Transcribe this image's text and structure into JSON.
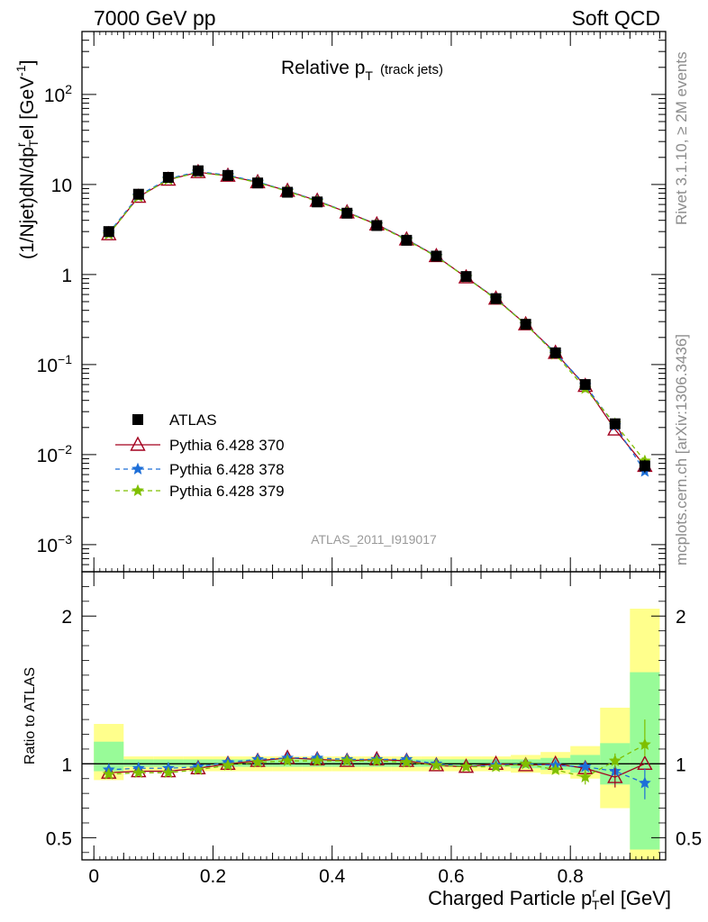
{
  "header": {
    "left": "7000 GeV pp",
    "right": "Soft QCD"
  },
  "side_labels": {
    "rivet": "Rivet 3.1.10, ≥ 2M events",
    "source": "mcplots.cern.ch [arXiv:1306.3436]"
  },
  "chart_data": [
    {
      "type": "line",
      "title": "Relative p",
      "title_sub": "T",
      "title_note": "(track jets)",
      "ylabel": "(1/Njet)dN/dp",
      "ylabel_sup": "r",
      "ylabel_sub": "T",
      "ylabel_tail": "el [GeV",
      "ylabel_unit_sup": "-1",
      "ylabel_close": "]",
      "yscale": "log",
      "ylim": [
        0.0005,
        500
      ],
      "xlim": [
        -0.02,
        0.96
      ],
      "y_ticks": [
        {
          "v": 0.001,
          "base": "10",
          "exp": "−3"
        },
        {
          "v": 0.01,
          "base": "10",
          "exp": "−2"
        },
        {
          "v": 0.1,
          "base": "10",
          "exp": "−1"
        },
        {
          "v": 1,
          "base": "1",
          "exp": ""
        },
        {
          "v": 10,
          "base": "10",
          "exp": ""
        },
        {
          "v": 100,
          "base": "10",
          "exp": "2"
        }
      ],
      "watermark": "ATLAS_2011_I919017",
      "x": [
        0.025,
        0.075,
        0.125,
        0.175,
        0.225,
        0.275,
        0.325,
        0.375,
        0.425,
        0.475,
        0.525,
        0.575,
        0.625,
        0.675,
        0.725,
        0.775,
        0.825,
        0.875,
        0.925
      ],
      "series": [
        {
          "name": "ATLAS",
          "color": "#000000",
          "marker": "square",
          "values": [
            3.0,
            7.8,
            12.0,
            14.2,
            12.6,
            10.4,
            8.2,
            6.4,
            4.8,
            3.5,
            2.4,
            1.6,
            0.95,
            0.54,
            0.28,
            0.135,
            0.06,
            0.022,
            0.0075
          ]
        },
        {
          "name": "Pythia 6.428 370",
          "color": "#a3001f",
          "marker": "triangle-open",
          "dash": "solid",
          "values": [
            2.8,
            7.3,
            11.3,
            13.7,
            12.5,
            10.6,
            8.5,
            6.6,
            4.9,
            3.6,
            2.45,
            1.6,
            0.93,
            0.54,
            0.28,
            0.135,
            0.058,
            0.019,
            0.0075
          ]
        },
        {
          "name": "Pythia 6.428 378",
          "color": "#1e6fd8",
          "marker": "star",
          "dash": "dashed",
          "values": [
            2.9,
            7.5,
            11.6,
            13.9,
            12.7,
            10.7,
            8.5,
            6.6,
            4.95,
            3.6,
            2.45,
            1.6,
            0.93,
            0.54,
            0.28,
            0.135,
            0.059,
            0.021,
            0.0065
          ]
        },
        {
          "name": "Pythia 6.428 379",
          "color": "#7fbf00",
          "marker": "star",
          "dash": "dashed",
          "values": [
            2.8,
            7.3,
            11.3,
            13.6,
            12.4,
            10.5,
            8.4,
            6.5,
            4.9,
            3.55,
            2.42,
            1.58,
            0.93,
            0.53,
            0.28,
            0.13,
            0.054,
            0.022,
            0.0085
          ]
        }
      ]
    },
    {
      "type": "line",
      "ylabel": "Ratio to ATLAS",
      "xlabel": "Charged Particle p",
      "xlabel_sup": "r",
      "xlabel_sub": "T",
      "xlabel_tail": "el [GeV]",
      "ylim": [
        0.35,
        2.3
      ],
      "xlim": [
        -0.02,
        0.96
      ],
      "y_ticks": [
        0.5,
        1,
        2
      ],
      "y_tick_labels": [
        "0.5",
        "1",
        "2"
      ],
      "x_ticks": [
        0,
        0.2,
        0.4,
        0.6,
        0.8
      ],
      "x_tick_labels": [
        "0",
        "0.2",
        "0.4",
        "0.6",
        "0.8"
      ],
      "x": [
        0.025,
        0.075,
        0.125,
        0.175,
        0.225,
        0.275,
        0.325,
        0.375,
        0.425,
        0.475,
        0.525,
        0.575,
        0.625,
        0.675,
        0.725,
        0.775,
        0.825,
        0.875,
        0.925
      ],
      "bands": {
        "edges": [
          0,
          0.05,
          0.1,
          0.15,
          0.2,
          0.25,
          0.3,
          0.35,
          0.4,
          0.45,
          0.5,
          0.55,
          0.6,
          0.65,
          0.7,
          0.75,
          0.8,
          0.85,
          0.9,
          0.95
        ],
        "yellow": [
          [
            0.89,
            1.27
          ],
          [
            0.95,
            1.05
          ],
          [
            0.95,
            1.05
          ],
          [
            0.95,
            1.05
          ],
          [
            0.95,
            1.05
          ],
          [
            0.95,
            1.05
          ],
          [
            0.95,
            1.05
          ],
          [
            0.95,
            1.05
          ],
          [
            0.95,
            1.05
          ],
          [
            0.95,
            1.05
          ],
          [
            0.95,
            1.05
          ],
          [
            0.95,
            1.05
          ],
          [
            0.95,
            1.05
          ],
          [
            0.95,
            1.05
          ],
          [
            0.94,
            1.06
          ],
          [
            0.93,
            1.08
          ],
          [
            0.9,
            1.12
          ],
          [
            0.7,
            1.38
          ],
          [
            0.35,
            2.05
          ]
        ],
        "green": [
          [
            0.95,
            1.15
          ],
          [
            0.98,
            1.03
          ],
          [
            0.98,
            1.03
          ],
          [
            0.98,
            1.03
          ],
          [
            0.98,
            1.03
          ],
          [
            0.98,
            1.03
          ],
          [
            0.98,
            1.03
          ],
          [
            0.98,
            1.03
          ],
          [
            0.98,
            1.03
          ],
          [
            0.98,
            1.03
          ],
          [
            0.98,
            1.03
          ],
          [
            0.98,
            1.03
          ],
          [
            0.98,
            1.03
          ],
          [
            0.98,
            1.03
          ],
          [
            0.97,
            1.03
          ],
          [
            0.96,
            1.04
          ],
          [
            0.94,
            1.06
          ],
          [
            0.86,
            1.14
          ],
          [
            0.42,
            1.62
          ]
        ]
      },
      "series": [
        {
          "name": "Pythia 6.428 370",
          "color": "#a3001f",
          "marker": "triangle-open",
          "dash": "solid",
          "values": [
            0.94,
            0.95,
            0.95,
            0.97,
            1.0,
            1.02,
            1.04,
            1.03,
            1.02,
            1.03,
            1.02,
            0.99,
            0.98,
            1.0,
            0.99,
            1.0,
            0.97,
            0.91,
            1.0
          ]
        },
        {
          "name": "Pythia 6.428 378",
          "color": "#1e6fd8",
          "marker": "star",
          "dash": "dashed",
          "values": [
            0.96,
            0.97,
            0.97,
            0.98,
            1.01,
            1.03,
            1.04,
            1.04,
            1.03,
            1.03,
            1.03,
            1.0,
            0.98,
            0.99,
            1.0,
            0.99,
            0.98,
            0.95,
            0.87
          ]
        },
        {
          "name": "Pythia 6.428 379",
          "color": "#7fbf00",
          "marker": "star",
          "dash": "dashed",
          "values": [
            0.93,
            0.94,
            0.94,
            0.96,
            0.99,
            1.01,
            1.02,
            1.02,
            1.02,
            1.02,
            1.01,
            0.99,
            0.98,
            0.98,
            1.0,
            0.96,
            0.91,
            1.02,
            1.13
          ]
        }
      ]
    }
  ]
}
